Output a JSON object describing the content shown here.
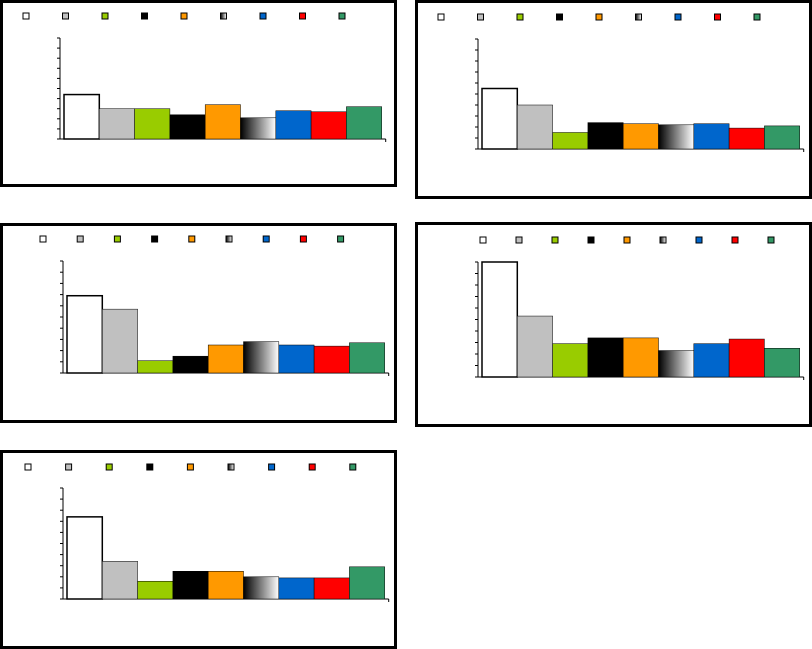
{
  "colors": {
    "white": "#ffffff",
    "silver": "#c0c0c0",
    "yellow_green": "#99cc00",
    "black": "#000000",
    "orange": "#ff9900",
    "gradient_start": "#000000",
    "gradient_end": "#ffffff",
    "blue": "#0066cc",
    "red": "#ff0000",
    "green": "#339966"
  },
  "chart_data": [
    {
      "type": "bar",
      "grid": false,
      "legend": "top",
      "ylim": [
        0,
        100
      ],
      "series": [
        {
          "fill": "white",
          "value": 44
        },
        {
          "fill": "silver",
          "value": 30
        },
        {
          "fill": "yellow_green",
          "value": 30
        },
        {
          "fill": "black",
          "value": 24
        },
        {
          "fill": "orange",
          "value": 34
        },
        {
          "fill": "gradient",
          "value": 21
        },
        {
          "fill": "blue",
          "value": 28
        },
        {
          "fill": "red",
          "value": 27
        },
        {
          "fill": "green",
          "value": 32
        }
      ]
    },
    {
      "type": "bar",
      "grid": false,
      "legend": "top",
      "ylim": [
        0,
        100
      ],
      "series": [
        {
          "fill": "white",
          "value": 55
        },
        {
          "fill": "silver",
          "value": 40
        },
        {
          "fill": "yellow_green",
          "value": 15
        },
        {
          "fill": "black",
          "value": 24
        },
        {
          "fill": "orange",
          "value": 23
        },
        {
          "fill": "gradient",
          "value": 22
        },
        {
          "fill": "blue",
          "value": 23
        },
        {
          "fill": "red",
          "value": 19
        },
        {
          "fill": "green",
          "value": 21
        }
      ]
    },
    {
      "type": "bar",
      "grid": false,
      "legend": "top",
      "ylim": [
        0,
        100
      ],
      "series": [
        {
          "fill": "white",
          "value": 69
        },
        {
          "fill": "silver",
          "value": 57
        },
        {
          "fill": "yellow_green",
          "value": 11
        },
        {
          "fill": "black",
          "value": 15
        },
        {
          "fill": "orange",
          "value": 25
        },
        {
          "fill": "gradient",
          "value": 28
        },
        {
          "fill": "blue",
          "value": 25
        },
        {
          "fill": "red",
          "value": 24
        },
        {
          "fill": "green",
          "value": 27
        }
      ]
    },
    {
      "type": "bar",
      "grid": false,
      "legend": "top",
      "ylim": [
        0,
        100
      ],
      "series": [
        {
          "fill": "white",
          "value": 100
        },
        {
          "fill": "silver",
          "value": 53
        },
        {
          "fill": "yellow_green",
          "value": 29
        },
        {
          "fill": "black",
          "value": 34
        },
        {
          "fill": "orange",
          "value": 34
        },
        {
          "fill": "gradient",
          "value": 23
        },
        {
          "fill": "blue",
          "value": 29
        },
        {
          "fill": "red",
          "value": 33
        },
        {
          "fill": "green",
          "value": 25
        }
      ]
    },
    {
      "type": "bar",
      "grid": false,
      "legend": "top",
      "ylim": [
        0,
        100
      ],
      "series": [
        {
          "fill": "white",
          "value": 74
        },
        {
          "fill": "silver",
          "value": 34
        },
        {
          "fill": "yellow_green",
          "value": 16
        },
        {
          "fill": "black",
          "value": 25
        },
        {
          "fill": "orange",
          "value": 25
        },
        {
          "fill": "gradient",
          "value": 20
        },
        {
          "fill": "blue",
          "value": 19
        },
        {
          "fill": "red",
          "value": 19
        },
        {
          "fill": "green",
          "value": 29
        }
      ]
    }
  ]
}
